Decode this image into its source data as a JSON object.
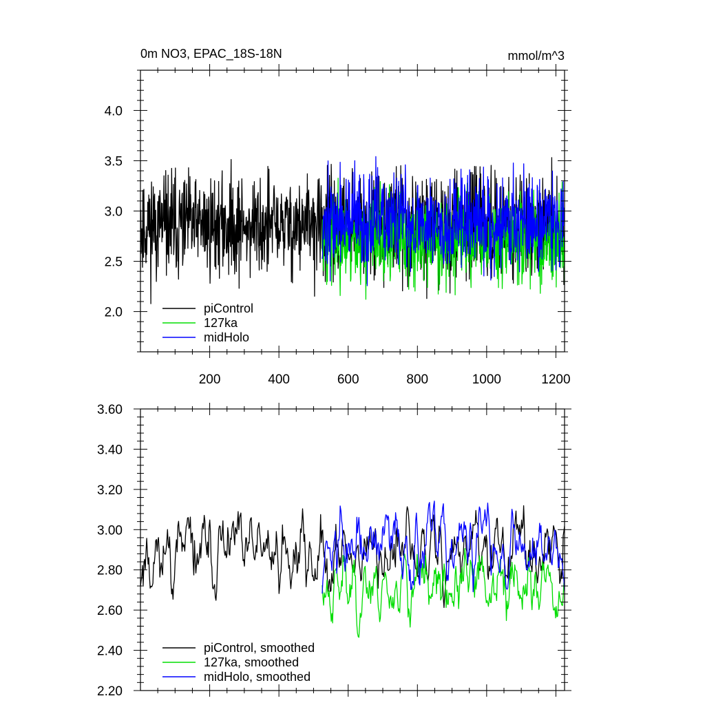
{
  "chart_data": [
    {
      "type": "line",
      "title": "0m NO3, EPAC_18S-18N",
      "units": "mmol/m^3",
      "xlabel": "",
      "ylabel": "",
      "xlim": [
        0,
        1225
      ],
      "ylim": [
        1.6,
        4.4
      ],
      "xticks": [
        200,
        400,
        600,
        800,
        1000,
        1200
      ],
      "xtick_labels": [
        "200",
        "400",
        "600",
        "800",
        "1000",
        "1200"
      ],
      "yticks": [
        2.0,
        2.5,
        3.0,
        3.5,
        4.0
      ],
      "ytick_labels": [
        "2.0",
        "2.5",
        "3.0",
        "3.5",
        "4.0"
      ],
      "legend_position": "bottom-left",
      "grid": false,
      "series": [
        {
          "name": "piControl",
          "color": "#000000",
          "x_start": 0,
          "x_end": 1225,
          "n": 1226,
          "mean": 2.85,
          "amplitude": 0.62,
          "seed": 11,
          "smooth": 1
        },
        {
          "name": "127ka",
          "color": "#00dd00",
          "x_start": 525,
          "x_end": 1225,
          "n": 701,
          "mean": 2.72,
          "amplitude": 0.55,
          "seed": 23,
          "smooth": 1
        },
        {
          "name": "midHolo",
          "color": "#0000ff",
          "x_start": 525,
          "x_end": 1225,
          "n": 701,
          "mean": 2.9,
          "amplitude": 0.58,
          "seed": 37,
          "smooth": 1
        }
      ]
    },
    {
      "type": "line",
      "title": "",
      "xlabel": "",
      "ylabel": "",
      "xlim": [
        0,
        1225
      ],
      "ylim": [
        2.2,
        3.6
      ],
      "xticks": [
        200,
        400,
        600,
        800,
        1000,
        1200
      ],
      "xtick_labels": [],
      "yticks": [
        2.2,
        2.4,
        2.6,
        2.8,
        3.0,
        3.2,
        3.4,
        3.6
      ],
      "ytick_labels": [
        "2.20",
        "2.40",
        "2.60",
        "2.80",
        "3.00",
        "3.20",
        "3.40",
        "3.60"
      ],
      "legend_position": "bottom-left",
      "grid": false,
      "series": [
        {
          "name": "piControl, smoothed",
          "color": "#000000",
          "x_start": 0,
          "x_end": 1225,
          "n": 613,
          "mean": 2.88,
          "amplitude": 0.28,
          "seed": 11,
          "smooth": 3
        },
        {
          "name": "127ka, smoothed",
          "color": "#00dd00",
          "x_start": 525,
          "x_end": 1225,
          "n": 351,
          "mean": 2.72,
          "amplitude": 0.25,
          "seed": 23,
          "smooth": 3
        },
        {
          "name": "midHolo, smoothed",
          "color": "#0000ff",
          "x_start": 525,
          "x_end": 1225,
          "n": 351,
          "mean": 2.92,
          "amplitude": 0.26,
          "seed": 37,
          "smooth": 3
        }
      ]
    }
  ]
}
